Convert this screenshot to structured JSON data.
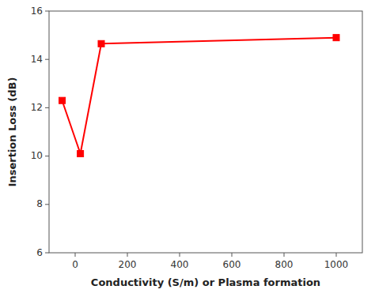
{
  "chart_data": {
    "type": "line",
    "x": [
      -50,
      20,
      100,
      1000
    ],
    "values": [
      12.3,
      10.1,
      14.65,
      14.9
    ],
    "color": "#FF0000",
    "marker": "square",
    "xlabel": "Conductivity (S/m) or Plasma formation",
    "ylabel": "Insertion Loss (dB)",
    "xlim": [
      -100,
      1100
    ],
    "ylim": [
      6,
      16
    ],
    "xticks": [
      0,
      200,
      400,
      600,
      800,
      1000
    ],
    "yticks": [
      6,
      8,
      10,
      12,
      14,
      16
    ],
    "grid": false
  }
}
